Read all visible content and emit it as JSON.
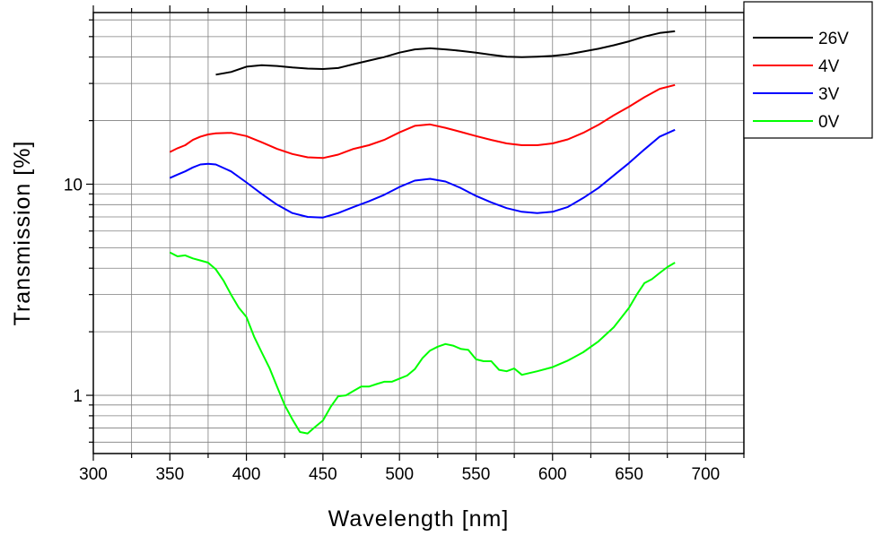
{
  "chart_data": {
    "type": "line",
    "xlabel": "Wavelength [nm]",
    "ylabel": "Transmission [%]",
    "xlim": [
      300,
      725
    ],
    "ylim": [
      0.53,
      65
    ],
    "yscale": "log",
    "grid": true,
    "legend_position": "top-right, outside plot area",
    "x_ticks": [
      300,
      350,
      400,
      450,
      500,
      550,
      600,
      650,
      700
    ],
    "x_tick_labels": [
      "300",
      "350",
      "400",
      "450",
      "500",
      "550",
      "600",
      "650",
      "700"
    ],
    "y_ticks": [
      1,
      10
    ],
    "y_tick_labels": [
      "1",
      "10"
    ],
    "series": [
      {
        "name": "26V",
        "color": "#000000",
        "x": [
          380,
          390,
          400,
          410,
          420,
          430,
          440,
          450,
          460,
          470,
          480,
          490,
          500,
          510,
          520,
          530,
          540,
          550,
          560,
          570,
          580,
          590,
          600,
          610,
          620,
          630,
          640,
          650,
          660,
          670,
          680
        ],
        "y": [
          33.0,
          34.0,
          36.0,
          36.6,
          36.3,
          35.7,
          35.3,
          35.1,
          35.5,
          37.0,
          38.5,
          40.0,
          42.0,
          43.5,
          44.0,
          43.5,
          42.8,
          42.0,
          41.0,
          40.2,
          40.0,
          40.2,
          40.5,
          41.2,
          42.5,
          43.8,
          45.5,
          47.5,
          50.0,
          52.0,
          53.0
        ]
      },
      {
        "name": "4V",
        "color": "#ff0000",
        "x": [
          350,
          355,
          360,
          365,
          370,
          375,
          380,
          390,
          400,
          410,
          420,
          430,
          440,
          450,
          460,
          470,
          480,
          490,
          500,
          510,
          520,
          530,
          540,
          550,
          560,
          570,
          580,
          590,
          600,
          610,
          620,
          630,
          640,
          650,
          660,
          670,
          680
        ],
        "y": [
          14.2,
          14.8,
          15.3,
          16.2,
          16.8,
          17.2,
          17.4,
          17.5,
          16.9,
          15.8,
          14.7,
          13.9,
          13.4,
          13.3,
          13.8,
          14.7,
          15.3,
          16.2,
          17.6,
          18.9,
          19.2,
          18.5,
          17.7,
          16.9,
          16.2,
          15.6,
          15.3,
          15.3,
          15.6,
          16.3,
          17.5,
          19.1,
          21.2,
          23.3,
          25.8,
          28.3,
          29.5
        ]
      },
      {
        "name": "3V",
        "color": "#0000ff",
        "x": [
          350,
          355,
          360,
          365,
          370,
          375,
          380,
          390,
          400,
          410,
          420,
          430,
          440,
          450,
          460,
          470,
          480,
          490,
          500,
          510,
          520,
          530,
          540,
          550,
          560,
          570,
          580,
          590,
          600,
          610,
          620,
          630,
          640,
          650,
          660,
          670,
          680
        ],
        "y": [
          10.7,
          11.1,
          11.5,
          12.0,
          12.4,
          12.5,
          12.4,
          11.5,
          10.2,
          9.0,
          8.0,
          7.3,
          7.0,
          6.95,
          7.3,
          7.8,
          8.3,
          8.9,
          9.7,
          10.4,
          10.6,
          10.3,
          9.6,
          8.8,
          8.2,
          7.7,
          7.4,
          7.3,
          7.4,
          7.8,
          8.6,
          9.6,
          11.0,
          12.6,
          14.6,
          16.8,
          18.1
        ]
      },
      {
        "name": "0V",
        "color": "#00ff00",
        "x": [
          350,
          355,
          360,
          365,
          370,
          375,
          380,
          385,
          390,
          395,
          400,
          405,
          410,
          415,
          420,
          425,
          430,
          435,
          440,
          445,
          450,
          455,
          460,
          465,
          470,
          475,
          480,
          485,
          490,
          495,
          500,
          505,
          510,
          515,
          520,
          525,
          530,
          535,
          540,
          545,
          550,
          555,
          560,
          565,
          570,
          575,
          580,
          590,
          600,
          610,
          620,
          630,
          640,
          650,
          655,
          660,
          665,
          670,
          675,
          680
        ],
        "y": [
          4.75,
          4.55,
          4.6,
          4.45,
          4.35,
          4.25,
          3.95,
          3.5,
          3.0,
          2.6,
          2.35,
          1.9,
          1.6,
          1.35,
          1.1,
          0.9,
          0.77,
          0.67,
          0.66,
          0.71,
          0.76,
          0.88,
          0.99,
          1.0,
          1.05,
          1.1,
          1.1,
          1.13,
          1.16,
          1.16,
          1.2,
          1.24,
          1.33,
          1.5,
          1.63,
          1.7,
          1.75,
          1.72,
          1.66,
          1.64,
          1.48,
          1.45,
          1.45,
          1.32,
          1.3,
          1.34,
          1.25,
          1.3,
          1.36,
          1.46,
          1.6,
          1.8,
          2.1,
          2.6,
          3.0,
          3.4,
          3.55,
          3.8,
          4.05,
          4.25
        ]
      }
    ]
  }
}
